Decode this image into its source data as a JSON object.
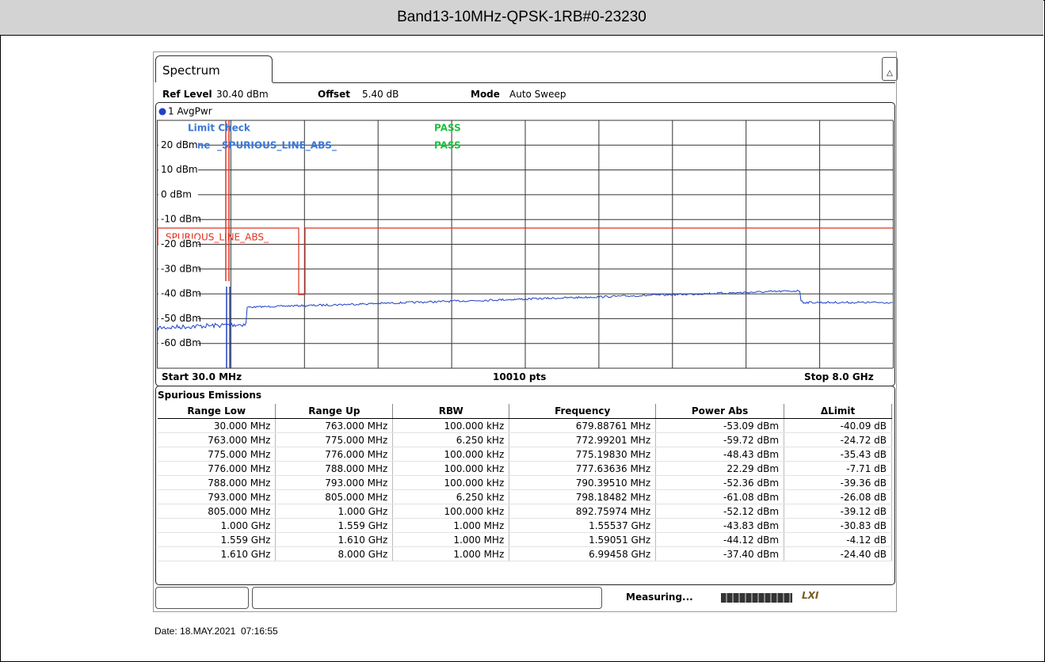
{
  "header": {
    "title": "Band13-10MHz-QPSK-1RB#0-23230"
  },
  "tab": "Spectrum",
  "settings": [
    {
      "label": "Ref Level",
      "value": "30.40 dBm"
    },
    {
      "label": "Offset",
      "value": "5.40 dB"
    },
    {
      "label": "Mode",
      "value": "Auto Sweep"
    }
  ],
  "trace": "1 AvgPwr",
  "limit_check": {
    "label": "Limit Check",
    "result": "PASS",
    "line_label": "Line",
    "line_name": "_SPURIOUS_LINE_ABS_",
    "line_result": "PASS"
  },
  "limit_line_label": "_SPURIOUS_LINE_ABS_",
  "y_labels": [
    "20 dBm",
    "10 dBm",
    "0 dBm",
    "-10 dBm",
    "-20 dBm",
    "-30 dBm",
    "-40 dBm",
    "-50 dBm",
    "-60 dBm"
  ],
  "footer": {
    "start": "Start 30.0 MHz",
    "points": "10010 pts",
    "stop": "Stop 8.0 GHz"
  },
  "table": {
    "title": "Spurious Emissions",
    "columns": [
      "Range Low",
      "Range Up",
      "RBW",
      "Frequency",
      "Power Abs",
      "ΔLimit"
    ],
    "rows": [
      [
        "30.000 MHz",
        "763.000 MHz",
        "100.000 kHz",
        "679.88761 MHz",
        "-53.09 dBm",
        "-40.09 dB"
      ],
      [
        "763.000 MHz",
        "775.000 MHz",
        "6.250 kHz",
        "772.99201 MHz",
        "-59.72 dBm",
        "-24.72 dB"
      ],
      [
        "775.000 MHz",
        "776.000 MHz",
        "100.000 kHz",
        "775.19830 MHz",
        "-48.43 dBm",
        "-35.43 dB"
      ],
      [
        "776.000 MHz",
        "788.000 MHz",
        "100.000 kHz",
        "777.63636 MHz",
        "22.29 dBm",
        "-7.71 dB"
      ],
      [
        "788.000 MHz",
        "793.000 MHz",
        "100.000 kHz",
        "790.39510 MHz",
        "-52.36 dBm",
        "-39.36 dB"
      ],
      [
        "793.000 MHz",
        "805.000 MHz",
        "6.250 kHz",
        "798.18482 MHz",
        "-61.08 dBm",
        "-26.08 dB"
      ],
      [
        "805.000 MHz",
        "1.000 GHz",
        "100.000 kHz",
        "892.75974 MHz",
        "-52.12 dBm",
        "-39.12 dB"
      ],
      [
        "1.000 GHz",
        "1.559 GHz",
        "1.000 MHz",
        "1.55537 GHz",
        "-43.83 dBm",
        "-30.83 dB"
      ],
      [
        "1.559 GHz",
        "1.610 GHz",
        "1.000 MHz",
        "1.59051 GHz",
        "-44.12 dBm",
        "-4.12 dB"
      ],
      [
        "1.610 GHz",
        "8.000 GHz",
        "1.000 MHz",
        "6.99458 GHz",
        "-37.40 dBm",
        "-24.40 dB"
      ]
    ]
  },
  "status": "Measuring...",
  "date": "Date: 18.MAY.2021  07:16:55"
}
